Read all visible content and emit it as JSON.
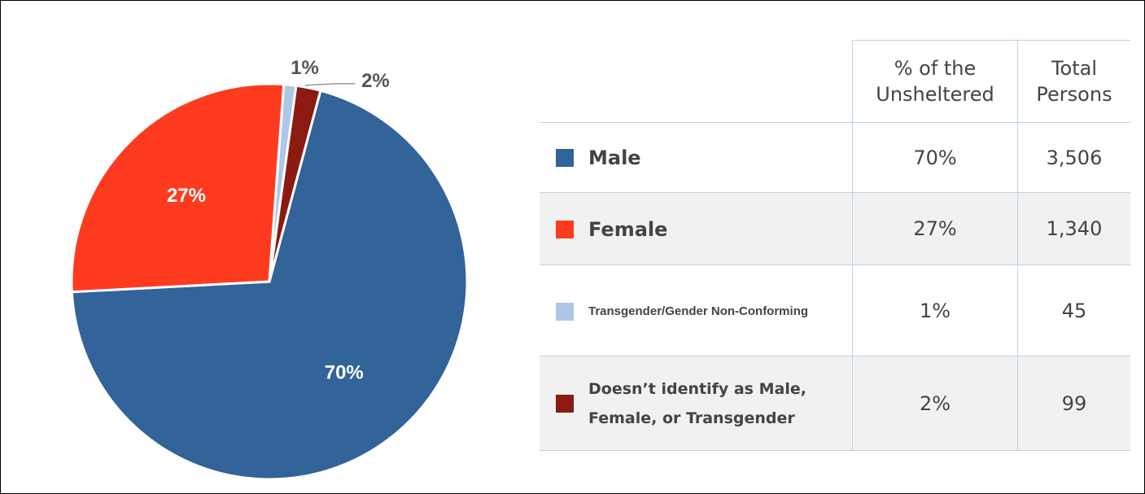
{
  "chart_data": {
    "type": "pie",
    "categories": [
      "Male",
      "Female",
      "Transgender/Gender Non-Conforming",
      "Doesn’t identify as Male, Female, or Transgender"
    ],
    "values": [
      70,
      27,
      1,
      2
    ],
    "value_labels": [
      "70%",
      "27%",
      "1%",
      "2%"
    ],
    "colors": [
      "#326399",
      "#ff3b1f",
      "#aec7e6",
      "#8b1b10"
    ]
  },
  "table": {
    "headers": [
      "% of the Unsheltered",
      "Total Persons"
    ],
    "totals": [
      "3,506",
      "1,340",
      "45",
      "99"
    ]
  }
}
